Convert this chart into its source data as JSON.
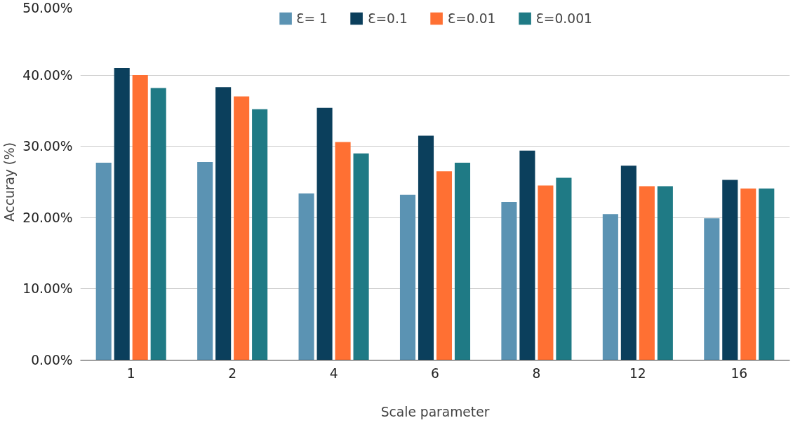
{
  "chart_data": {
    "type": "bar",
    "xlabel": "Scale parameter",
    "ylabel": "Accuray (%)",
    "categories": [
      "1",
      "2",
      "4",
      "6",
      "8",
      "12",
      "16"
    ],
    "series": [
      {
        "name": "Ɛ= 1",
        "color": "#5b93b3",
        "values": [
          27.7,
          27.8,
          23.4,
          23.2,
          22.2,
          20.5,
          19.9
        ]
      },
      {
        "name": "Ɛ=0.1",
        "color": "#0b3f5c",
        "values": [
          41.0,
          38.3,
          35.4,
          31.5,
          29.4,
          27.3,
          25.3
        ]
      },
      {
        "name": "Ɛ=0.01",
        "color": "#ff7033",
        "values": [
          40.0,
          37.0,
          30.6,
          26.5,
          24.5,
          24.4,
          24.1
        ]
      },
      {
        "name": "Ɛ=0.001",
        "color": "#1f7a85",
        "values": [
          38.2,
          35.2,
          29.0,
          27.7,
          25.6,
          24.4,
          24.1
        ]
      }
    ],
    "ylim": [
      0,
      50
    ],
    "yticks": [
      {
        "value": 0,
        "label": "0.00%"
      },
      {
        "value": 10,
        "label": "10.00%"
      },
      {
        "value": 20,
        "label": "20.00%"
      },
      {
        "value": 30,
        "label": "30.00%"
      },
      {
        "value": 40,
        "label": "40.00%"
      },
      {
        "value": 50,
        "label": "50.00%"
      }
    ],
    "grid": "y",
    "legend": "top"
  }
}
